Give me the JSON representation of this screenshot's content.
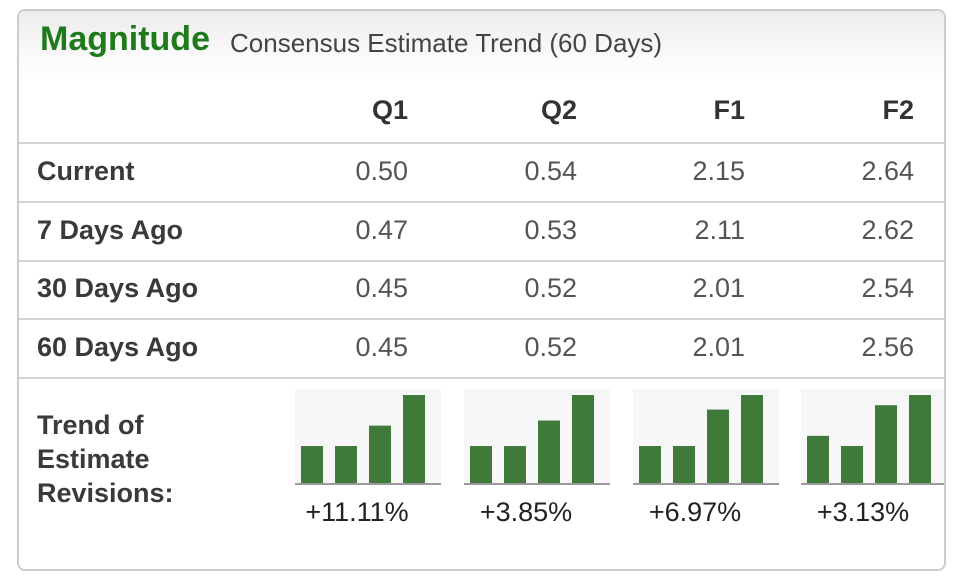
{
  "header": {
    "brand": "Magnitude",
    "subtitle": "Consensus Estimate Trend (60 Days)"
  },
  "columns": [
    "Q1",
    "Q2",
    "F1",
    "F2"
  ],
  "rows": [
    {
      "label": "Current",
      "values": [
        "0.50",
        "0.54",
        "2.15",
        "2.64"
      ]
    },
    {
      "label": "7 Days Ago",
      "values": [
        "0.47",
        "0.53",
        "2.11",
        "2.62"
      ]
    },
    {
      "label": "30 Days Ago",
      "values": [
        "0.45",
        "0.52",
        "2.01",
        "2.54"
      ]
    },
    {
      "label": "60 Days Ago",
      "values": [
        "0.45",
        "0.52",
        "2.01",
        "2.56"
      ]
    }
  ],
  "trend": {
    "label_lines": [
      "Trend of",
      "Estimate",
      "Revisions:"
    ],
    "percentages": [
      "+11.11%",
      "+3.85%",
      "+6.97%",
      "+3.13%"
    ]
  },
  "colors": {
    "brand": "#1e7a1a",
    "bar": "#3f7a3a",
    "border": "#cccccc"
  },
  "chart_data": {
    "type": "bar",
    "note_order": "bars in each sparkline run oldest to newest: 60 Days Ago, 30 Days Ago, 7 Days Ago, Current",
    "charts": [
      {
        "column": "Q1",
        "values": [
          0.45,
          0.45,
          0.47,
          0.5
        ],
        "change": "+11.11%"
      },
      {
        "column": "Q2",
        "values": [
          0.52,
          0.52,
          0.53,
          0.54
        ],
        "change": "+3.85%"
      },
      {
        "column": "F1",
        "values": [
          2.01,
          2.01,
          2.11,
          2.15
        ],
        "change": "+6.97%"
      },
      {
        "column": "F2",
        "values": [
          2.56,
          2.54,
          2.62,
          2.64
        ],
        "change": "+3.13%"
      }
    ]
  }
}
